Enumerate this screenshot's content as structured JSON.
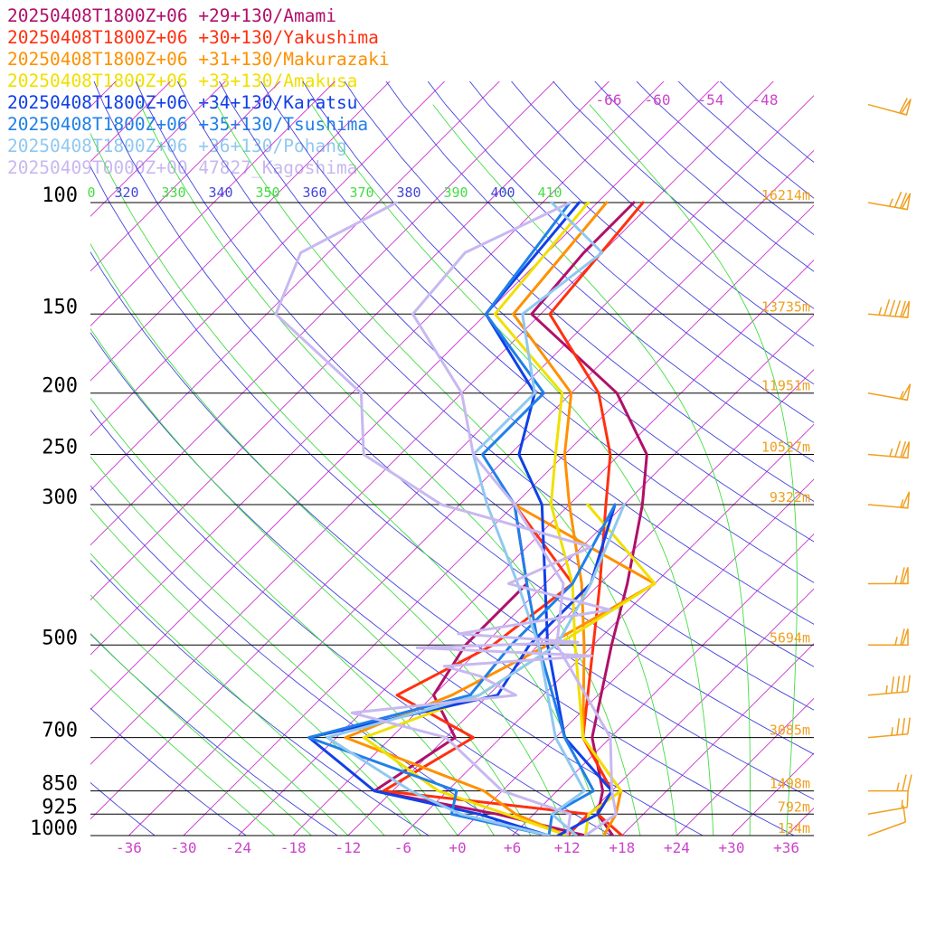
{
  "chart_data": {
    "type": "line",
    "subtype": "skew-t log-p sounding",
    "title": "",
    "xlabel": "",
    "ylabel": "",
    "pressure_range_hpa": [
      1000,
      100
    ],
    "temperature_range_c": [
      -40,
      40
    ],
    "pressure_ticks": [
      {
        "p": 100,
        "label": "100"
      },
      {
        "p": 150,
        "label": "150"
      },
      {
        "p": 200,
        "label": "200"
      },
      {
        "p": 250,
        "label": "250"
      },
      {
        "p": 300,
        "label": "300"
      },
      {
        "p": 500,
        "label": "500"
      },
      {
        "p": 700,
        "label": "700"
      },
      {
        "p": 850,
        "label": "850"
      },
      {
        "p": 925,
        "label": "925"
      },
      {
        "p": 1000,
        "label": "1000"
      }
    ],
    "temperature_ticks": [
      {
        "t": -36,
        "label": "-36"
      },
      {
        "t": -30,
        "label": "-30"
      },
      {
        "t": -24,
        "label": "-24"
      },
      {
        "t": -18,
        "label": "-18"
      },
      {
        "t": -12,
        "label": "-12"
      },
      {
        "t": -6,
        "label": "-6"
      },
      {
        "t": 0,
        "label": "+0"
      },
      {
        "t": 6,
        "label": "+6"
      },
      {
        "t": 12,
        "label": "+12"
      },
      {
        "t": 18,
        "label": "+18"
      },
      {
        "t": 24,
        "label": "+24"
      },
      {
        "t": 30,
        "label": "+30"
      },
      {
        "t": 36,
        "label": "+36"
      }
    ],
    "upper_temperature_labels": [
      "-66",
      "-60",
      "-54",
      "-48"
    ],
    "theta_labels": [
      {
        "text": "0",
        "color": "#44dd44"
      },
      {
        "text": "320",
        "color": "#4444dd"
      },
      {
        "text": "330",
        "color": "#44dd44"
      },
      {
        "text": "340",
        "color": "#4444dd"
      },
      {
        "text": "350",
        "color": "#44dd44"
      },
      {
        "text": "360",
        "color": "#4444dd"
      },
      {
        "text": "370",
        "color": "#44dd44"
      },
      {
        "text": "380",
        "color": "#4444dd"
      },
      {
        "text": "390",
        "color": "#44dd44"
      },
      {
        "text": "400",
        "color": "#4444dd"
      },
      {
        "text": "410",
        "color": "#44dd44"
      }
    ],
    "height_labels": [
      {
        "p": 100,
        "text": "16214m"
      },
      {
        "p": 150,
        "text": "13735m"
      },
      {
        "p": 200,
        "text": "11951m"
      },
      {
        "p": 250,
        "text": "10527m"
      },
      {
        "p": 300,
        "text": "9322m"
      },
      {
        "p": 500,
        "text": "5694m"
      },
      {
        "p": 700,
        "text": "3085m"
      },
      {
        "p": 850,
        "text": "1498m"
      },
      {
        "p": 925,
        "text": "792m"
      },
      {
        "p": 1000,
        "text": "134m"
      }
    ],
    "colors": {
      "isobar": "#000000",
      "isotherm": "#cc33cc",
      "dry_adiabat": "#4444dd",
      "moist_adiabat": "#44dd44",
      "tick_label": "#cc44cc",
      "height_label": "#f0a020",
      "wind_barb": "#f0a020"
    },
    "series": [
      {
        "name": "20250408T1800Z+06 +29+130/Amami",
        "color": "#b0106a",
        "temp": [
          [
            1000,
            17
          ],
          [
            925,
            13
          ],
          [
            850,
            11
          ],
          [
            700,
            4
          ],
          [
            500,
            -4
          ],
          [
            400,
            -9
          ],
          [
            300,
            -16
          ],
          [
            250,
            -21
          ],
          [
            200,
            -31
          ],
          [
            150,
            -49
          ],
          [
            120,
            -50
          ],
          [
            100,
            -50
          ]
        ],
        "dewpoint": [
          [
            1000,
            14
          ],
          [
            925,
            2
          ],
          [
            850,
            -14
          ],
          [
            700,
            -11
          ],
          [
            600,
            -18
          ],
          [
            500,
            -20
          ],
          [
            400,
            -20
          ],
          [
            300,
            -30
          ]
        ]
      },
      {
        "name": "20250408T1800Z+06 +30+130/Yakushima",
        "color": "#ff3010",
        "temp": [
          [
            1000,
            18
          ],
          [
            925,
            13
          ],
          [
            850,
            12
          ],
          [
            700,
            3
          ],
          [
            500,
            -6
          ],
          [
            400,
            -12
          ],
          [
            300,
            -20
          ],
          [
            250,
            -25
          ],
          [
            200,
            -33
          ],
          [
            150,
            -47
          ],
          [
            100,
            -49
          ]
        ],
        "dewpoint": [
          [
            1000,
            12
          ],
          [
            925,
            12
          ],
          [
            850,
            -13
          ],
          [
            700,
            -9
          ],
          [
            600,
            -22
          ],
          [
            500,
            -17
          ],
          [
            400,
            -15
          ],
          [
            300,
            -30
          ]
        ]
      },
      {
        "name": "20250408T1800Z+06 +31+130/Makurazaki",
        "color": "#ff9000",
        "temp": [
          [
            1000,
            16
          ],
          [
            925,
            15
          ],
          [
            850,
            13
          ],
          [
            700,
            3
          ],
          [
            500,
            -7
          ],
          [
            400,
            -14
          ],
          [
            300,
            -24
          ],
          [
            250,
            -30
          ],
          [
            200,
            -36
          ],
          [
            150,
            -51
          ],
          [
            100,
            -53
          ]
        ],
        "dewpoint": [
          [
            1000,
            12
          ],
          [
            925,
            4
          ],
          [
            850,
            -2
          ],
          [
            700,
            -23
          ],
          [
            600,
            -16
          ],
          [
            500,
            -11
          ],
          [
            400,
            -6
          ],
          [
            300,
            -30
          ]
        ]
      },
      {
        "name": "20250408T1800Z+06 +33+130/Amakusa",
        "color": "#f0e000",
        "temp": [
          [
            1000,
            14
          ],
          [
            925,
            12
          ],
          [
            850,
            13
          ],
          [
            700,
            3
          ],
          [
            500,
            -8
          ],
          [
            400,
            -15
          ],
          [
            300,
            -26
          ],
          [
            250,
            -31
          ],
          [
            200,
            -37
          ],
          [
            150,
            -53
          ],
          [
            100,
            -55
          ]
        ],
        "dewpoint": [
          [
            1000,
            12
          ],
          [
            925,
            3
          ],
          [
            850,
            -7
          ],
          [
            700,
            -21
          ],
          [
            600,
            -13
          ],
          [
            500,
            -10
          ],
          [
            400,
            -6
          ],
          [
            300,
            -22
          ]
        ]
      },
      {
        "name": "20250408T1800Z+06 +34+130/Karatsu",
        "color": "#1040e8",
        "temp": [
          [
            1000,
            11
          ],
          [
            925,
            13
          ],
          [
            850,
            12
          ],
          [
            700,
            1
          ],
          [
            500,
            -11
          ],
          [
            400,
            -18
          ],
          [
            300,
            -27
          ],
          [
            250,
            -35
          ],
          [
            200,
            -40
          ],
          [
            150,
            -54
          ],
          [
            100,
            -56
          ]
        ],
        "dewpoint": [
          [
            1000,
            10
          ],
          [
            925,
            0
          ],
          [
            850,
            -14
          ],
          [
            700,
            -27
          ],
          [
            600,
            -11
          ],
          [
            500,
            -13
          ],
          [
            400,
            -13
          ],
          [
            300,
            -19
          ]
        ]
      },
      {
        "name": "20250408T1800Z+06 +35+130/Tsushima",
        "color": "#2080e8",
        "temp": [
          [
            1000,
            10
          ],
          [
            925,
            8
          ],
          [
            850,
            10
          ],
          [
            700,
            1
          ],
          [
            500,
            -12
          ],
          [
            400,
            -20
          ],
          [
            300,
            -30
          ],
          [
            250,
            -39
          ],
          [
            200,
            -39
          ],
          [
            150,
            -54
          ],
          [
            100,
            -57
          ]
        ],
        "dewpoint": [
          [
            1000,
            10
          ],
          [
            925,
            -3
          ],
          [
            850,
            -5
          ],
          [
            700,
            -27
          ],
          [
            600,
            -14
          ],
          [
            500,
            -15
          ],
          [
            400,
            -15
          ],
          [
            300,
            -19
          ]
        ]
      },
      {
        "name": "20250408T1800Z+06 +36+130/Pohang",
        "color": "#90c8f0",
        "temp": [
          [
            1000,
            13
          ],
          [
            925,
            8
          ],
          [
            850,
            9
          ],
          [
            700,
            0
          ],
          [
            500,
            -12
          ],
          [
            400,
            -21
          ],
          [
            300,
            -33
          ],
          [
            250,
            -40
          ],
          [
            200,
            -40
          ],
          [
            150,
            -50
          ],
          [
            120,
            -48
          ],
          [
            100,
            -59
          ]
        ],
        "dewpoint": [
          [
            1000,
            10
          ],
          [
            925,
            -2
          ],
          [
            850,
            -10
          ],
          [
            700,
            -25
          ],
          [
            600,
            -13
          ],
          [
            500,
            -10
          ],
          [
            400,
            -13
          ],
          [
            300,
            -18
          ]
        ]
      },
      {
        "name": "20250409T0000Z+00 47827_Kagoshima",
        "color": "#c8b8f0",
        "temp": [
          [
            1000,
            14
          ],
          [
            925,
            15
          ],
          [
            850,
            12
          ],
          [
            700,
            6
          ],
          [
            500,
            -10
          ],
          [
            400,
            -16
          ],
          [
            300,
            -30
          ],
          [
            250,
            -40
          ],
          [
            200,
            -48
          ],
          [
            150,
            -62
          ],
          [
            120,
            -63
          ],
          [
            100,
            -57
          ]
        ],
        "dewpoint": [
          [
            1000,
            12
          ],
          [
            925,
            10
          ],
          [
            850,
            0
          ],
          [
            700,
            -12
          ],
          [
            640,
            -25
          ],
          [
            600,
            -9
          ],
          [
            560,
            -15
          ],
          [
            540,
            -20
          ],
          [
            520,
            -5
          ],
          [
            505,
            -25
          ],
          [
            495,
            -8
          ],
          [
            480,
            -22
          ],
          [
            440,
            -8
          ],
          [
            400,
            -22
          ],
          [
            350,
            -17
          ],
          [
            300,
            -38
          ],
          [
            250,
            -52
          ],
          [
            200,
            -59
          ],
          [
            150,
            -77
          ],
          [
            120,
            -81
          ],
          [
            100,
            -76
          ]
        ]
      }
    ],
    "wind_barbs": [
      {
        "p": 1000,
        "dir": 250,
        "speed": 10
      },
      {
        "p": 925,
        "dir": 260,
        "speed": 15
      },
      {
        "p": 850,
        "dir": 270,
        "speed": 25
      },
      {
        "p": 700,
        "dir": 265,
        "speed": 35
      },
      {
        "p": 600,
        "dir": 265,
        "speed": 45
      },
      {
        "p": 500,
        "dir": 270,
        "speed": 65
      },
      {
        "p": 400,
        "dir": 270,
        "speed": 65
      },
      {
        "p": 300,
        "dir": 275,
        "speed": 55
      },
      {
        "p": 250,
        "dir": 275,
        "speed": 75
      },
      {
        "p": 200,
        "dir": 280,
        "speed": 55
      },
      {
        "p": 150,
        "dir": 275,
        "speed": 95
      },
      {
        "p": 100,
        "dir": 280,
        "speed": 75
      },
      {
        "p": 70,
        "dir": 285,
        "speed": 60
      }
    ]
  }
}
